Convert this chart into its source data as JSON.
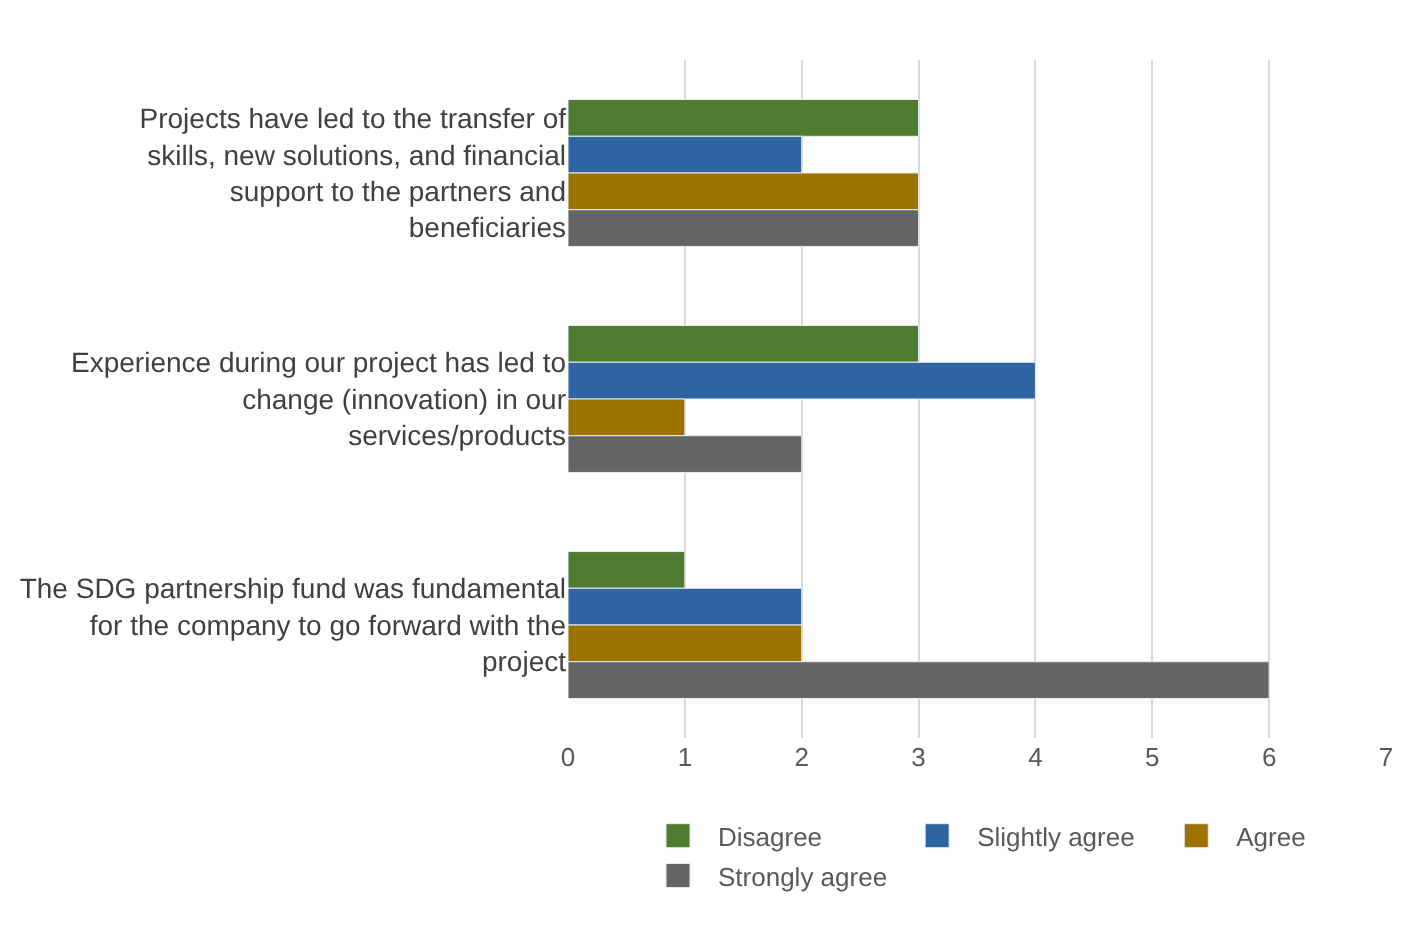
{
  "chart_data": {
    "type": "bar",
    "orientation": "horizontal",
    "categories": [
      "Projects have led to the transfer of skills, new solutions, and financial support to the partners and beneficiaries",
      "Experience during our project has led to change (innovation) in our services/products",
      "The SDG partnership fund was fundamental for the company to go forward with the project"
    ],
    "series": [
      {
        "name": "Disagree",
        "color": "#4e7b2f",
        "values": [
          3,
          3,
          1
        ]
      },
      {
        "name": "Slightly agree",
        "color": "#2e65a0",
        "values": [
          2,
          4,
          2
        ]
      },
      {
        "name": "Agree",
        "color": "#9c7300",
        "values": [
          3,
          1,
          2
        ]
      },
      {
        "name": "Strongly agree",
        "color": "#646464",
        "values": [
          3,
          2,
          6
        ]
      }
    ],
    "xlim": [
      0,
      7
    ],
    "xticks": [
      0,
      1,
      2,
      3,
      4,
      5,
      6,
      7
    ],
    "grid": "x",
    "legend": "bottom"
  }
}
